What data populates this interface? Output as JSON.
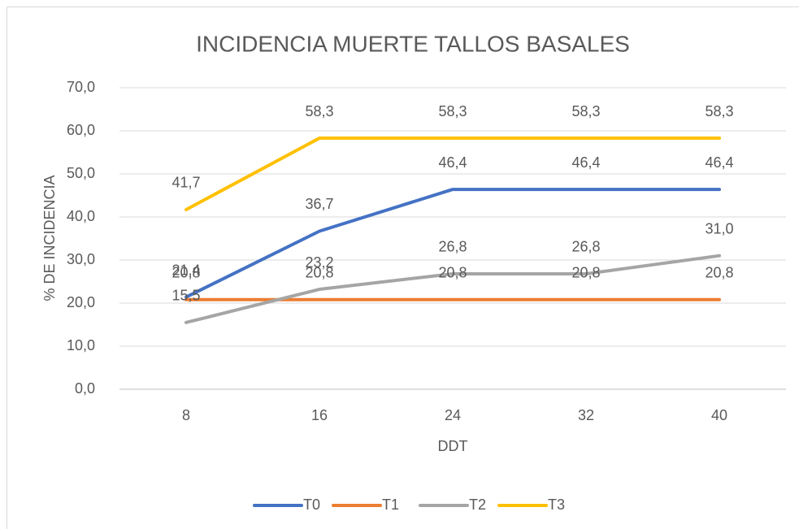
{
  "chart_data": {
    "type": "line",
    "title": "INCIDENCIA MUERTE TALLOS BASALES",
    "xlabel": "DDT",
    "ylabel": "% DE INCIDENCIA",
    "categories": [
      "8",
      "16",
      "24",
      "32",
      "40"
    ],
    "series": [
      {
        "name": "T0",
        "color": "#4472c4",
        "values": [
          21.4,
          36.7,
          46.4,
          46.4,
          46.4
        ],
        "value_labels": [
          "21,4",
          "36,7",
          "46,4",
          "46,4",
          "46,4"
        ]
      },
      {
        "name": "T1",
        "color": "#ed7d31",
        "values": [
          20.8,
          20.8,
          20.8,
          20.8,
          20.8
        ],
        "value_labels": [
          "20,8",
          "20,8",
          "20,8",
          "20,8",
          "20,8"
        ]
      },
      {
        "name": "T2",
        "color": "#a5a5a5",
        "values": [
          15.5,
          23.2,
          26.8,
          26.8,
          31.0
        ],
        "value_labels": [
          "15,5",
          "23,2",
          "26,8",
          "26,8",
          "31,0"
        ]
      },
      {
        "name": "T3",
        "color": "#ffc000",
        "values": [
          41.7,
          58.3,
          58.3,
          58.3,
          58.3
        ],
        "value_labels": [
          "41,7",
          "58,3",
          "58,3",
          "58,3",
          "58,3"
        ]
      }
    ],
    "ylim": [
      0,
      70
    ],
    "yticks": [
      {
        "value": 0,
        "label": "0,0"
      },
      {
        "value": 10,
        "label": "10,0"
      },
      {
        "value": 20,
        "label": "20,0"
      },
      {
        "value": 30,
        "label": "30,0"
      },
      {
        "value": 40,
        "label": "40,0"
      },
      {
        "value": 50,
        "label": "50,0"
      },
      {
        "value": 60,
        "label": "60,0"
      },
      {
        "value": 70,
        "label": "70,0"
      }
    ],
    "grid": true,
    "legend": "bottom"
  }
}
